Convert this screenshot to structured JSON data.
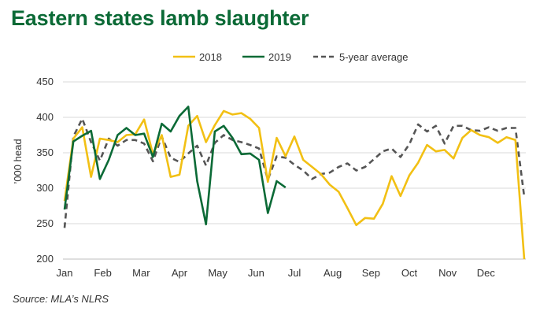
{
  "title": "Eastern states lamb slaughter",
  "source": "Source: MLA’s NLRS",
  "colors": {
    "s2018": "#f2c014",
    "s2019": "#0b6a36",
    "avg": "#555555",
    "grid": "#d9d9d9"
  },
  "chart_data": {
    "type": "line",
    "title": "Eastern states lamb slaughter",
    "ylabel": "’000 head",
    "xlabel": "",
    "ylim": [
      200,
      450
    ],
    "yticks": [
      200,
      250,
      300,
      350,
      400,
      450
    ],
    "xlim": [
      1,
      53
    ],
    "month_labels": [
      "Jan",
      "Feb",
      "Mar",
      "Apr",
      "May",
      "Jun",
      "Jul",
      "Aug",
      "Sep",
      "Oct",
      "Nov",
      "Dec"
    ],
    "month_weeks": [
      1,
      5.33,
      9.67,
      14,
      18.33,
      22.67,
      27,
      31.33,
      35.67,
      40,
      44.33,
      48.67
    ],
    "grid": true,
    "legend_position": "top",
    "series": [
      {
        "name": "2018",
        "style": "solid",
        "x": [
          1,
          2,
          3,
          4,
          5,
          6,
          7,
          8,
          9,
          10,
          11,
          12,
          13,
          14,
          15,
          16,
          17,
          18,
          19,
          20,
          21,
          22,
          23,
          24,
          25,
          26,
          27,
          28,
          29,
          30,
          31,
          32,
          33,
          34,
          35,
          36,
          37,
          38,
          39,
          40,
          41,
          42,
          43,
          44,
          45,
          46,
          47,
          48,
          49,
          50,
          51,
          52,
          53
        ],
        "values": [
          282,
          370,
          386,
          316,
          370,
          368,
          365,
          375,
          376,
          397,
          348,
          375,
          316,
          319,
          388,
          402,
          365,
          389,
          409,
          404,
          406,
          398,
          385,
          309,
          371,
          345,
          373,
          340,
          330,
          320,
          305,
          295,
          272,
          248,
          258,
          257,
          278,
          317,
          289,
          318,
          336,
          361,
          352,
          354,
          342,
          371,
          382,
          375,
          372,
          364,
          372,
          368,
          200
        ]
      },
      {
        "name": "2019",
        "style": "solid",
        "x": [
          1,
          2,
          3,
          4,
          5,
          6,
          7,
          8,
          9,
          10,
          11,
          12,
          13,
          14,
          15,
          16,
          17,
          18,
          19,
          20,
          21,
          22,
          23,
          24,
          25,
          26
        ],
        "values": [
          270,
          366,
          374,
          381,
          313,
          340,
          375,
          385,
          375,
          377,
          344,
          391,
          380,
          402,
          415,
          310,
          249,
          380,
          388,
          371,
          348,
          349,
          340,
          265,
          310,
          301
        ]
      },
      {
        "name": "5-year average",
        "style": "dashed",
        "x": [
          1,
          2,
          3,
          4,
          5,
          6,
          7,
          8,
          9,
          10,
          11,
          12,
          13,
          14,
          15,
          16,
          17,
          18,
          19,
          20,
          21,
          22,
          23,
          24,
          25,
          26,
          27,
          28,
          29,
          30,
          31,
          32,
          33,
          34,
          35,
          36,
          37,
          38,
          39,
          40,
          41,
          42,
          43,
          44,
          45,
          46,
          47,
          48,
          49,
          50,
          51,
          52,
          53
        ],
        "values": [
          244,
          373,
          398,
          365,
          339,
          370,
          360,
          368,
          368,
          363,
          338,
          373,
          343,
          337,
          349,
          360,
          332,
          364,
          375,
          368,
          365,
          361,
          356,
          312,
          345,
          343,
          333,
          325,
          313,
          320,
          322,
          330,
          335,
          325,
          330,
          341,
          352,
          356,
          344,
          362,
          390,
          380,
          388,
          363,
          388,
          388,
          382,
          381,
          386,
          381,
          385,
          385,
          288
        ]
      }
    ]
  }
}
